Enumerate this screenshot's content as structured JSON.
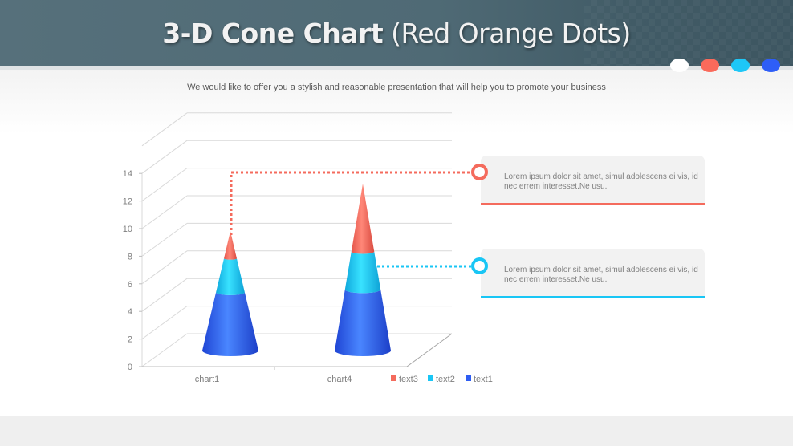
{
  "header": {
    "title_bold": "3-D Cone Chart",
    "title_light": "(Red Orange Dots)",
    "dots": [
      "#ffffff",
      "#fa6a5b",
      "#1ec7f7",
      "#2e5ef7"
    ]
  },
  "subtitle": "We would like to offer you a stylish and reasonable presentation that will help you to promote your business",
  "colors": {
    "text3": "#f46b5d",
    "text2": "#19c6f5",
    "text1": "#2e5df2",
    "header_bg": "#526d78",
    "footer_bg": "#efefef"
  },
  "callouts": [
    {
      "text": "Lorem ipsum dolor sit amet, simul adolescens ei vis, id nec errem interesset.Ne usu.",
      "color": "#f46b5d"
    },
    {
      "text": "Lorem ipsum dolor sit amet, simul adolescens ei vis, id nec errem interesset.Ne usu.",
      "color": "#19c6f5"
    }
  ],
  "chart_data": {
    "type": "bar",
    "subtype": "3d-cone-stacked",
    "title": "",
    "xlabel": "",
    "ylabel": "",
    "categories": [
      "chart1",
      "chart4"
    ],
    "series": [
      {
        "name": "text1",
        "color": "#2e5df2",
        "values": [
          4.3,
          4.5
        ]
      },
      {
        "name": "text2",
        "color": "#19c6f5",
        "values": [
          2.5,
          2.8
        ]
      },
      {
        "name": "text3",
        "color": "#f46b5d",
        "values": [
          2.0,
          5.0
        ]
      }
    ],
    "y_ticks": [
      "0",
      "2",
      "4",
      "6",
      "8",
      "10",
      "12",
      "14"
    ],
    "ylim": [
      0,
      16
    ],
    "grid": true,
    "legend": {
      "position": "bottom-right",
      "entries": [
        "text3",
        "text2",
        "text1"
      ]
    }
  }
}
